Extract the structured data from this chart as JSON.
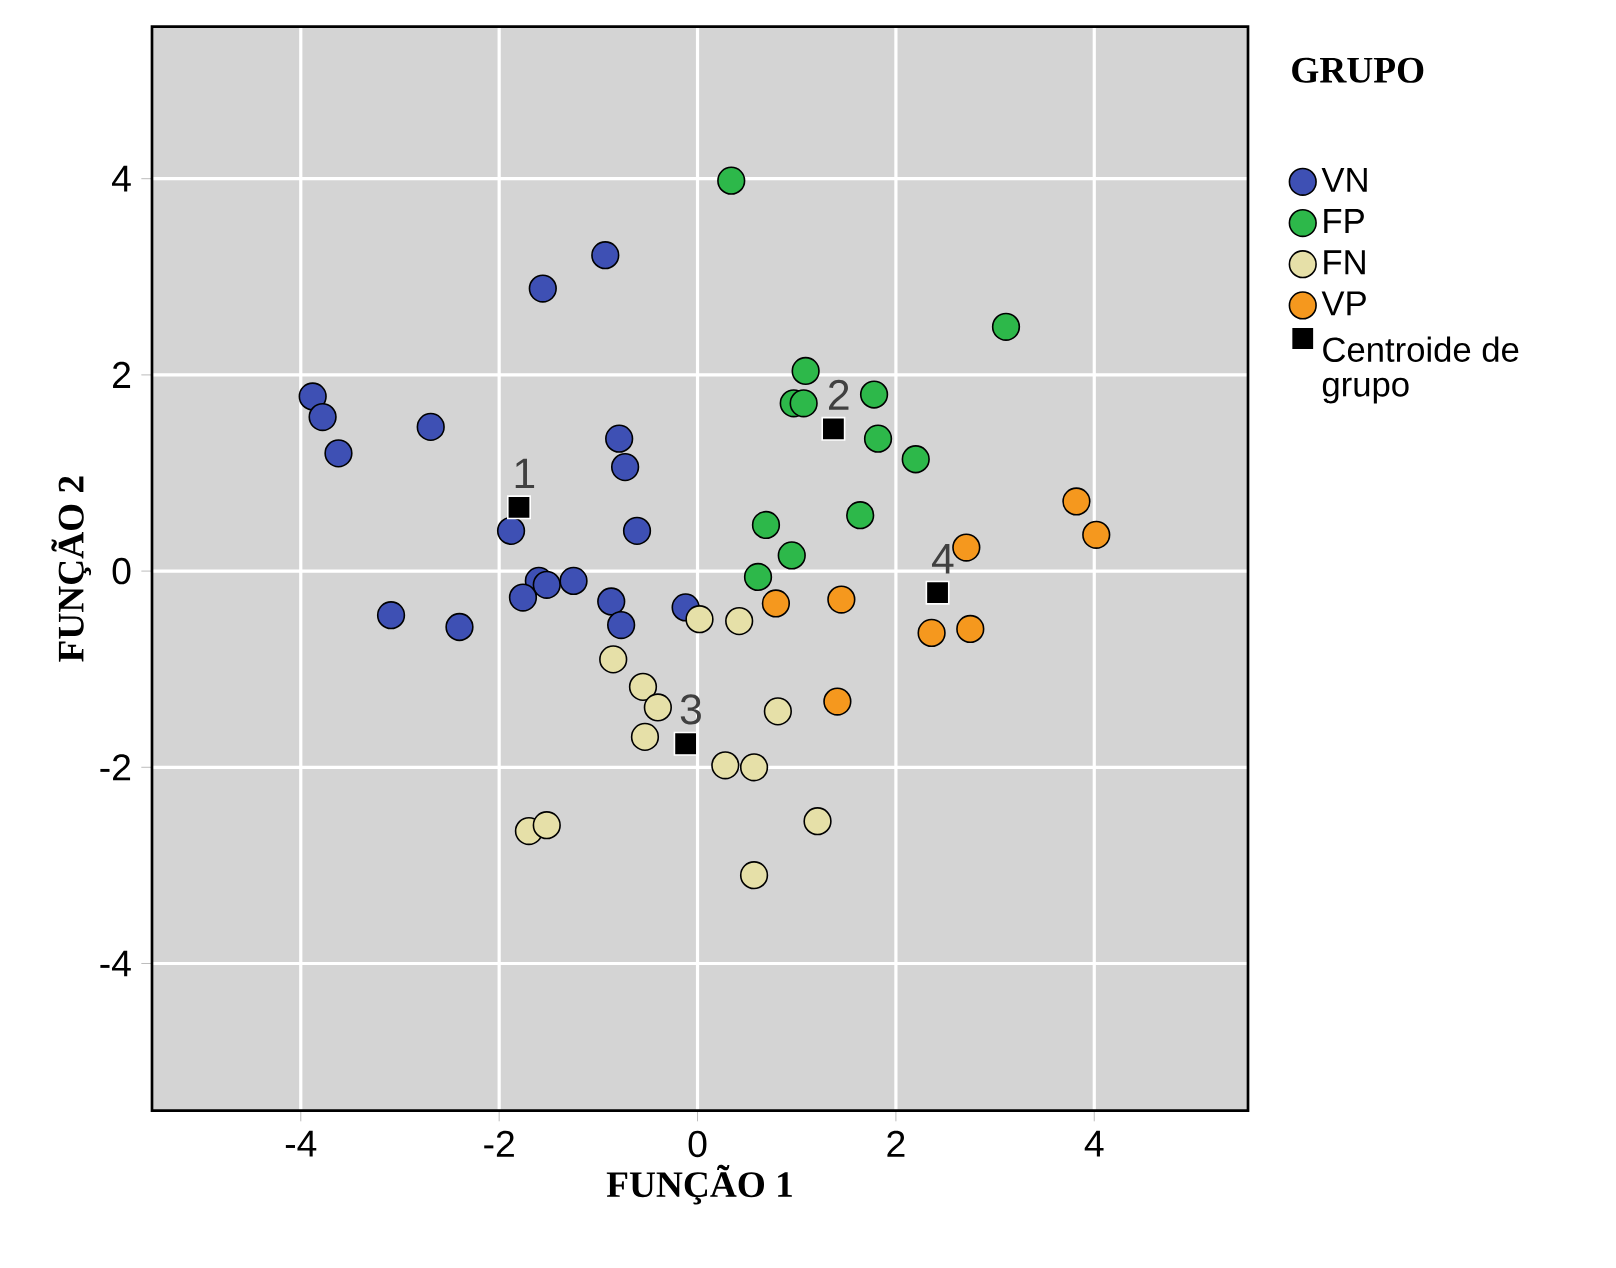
{
  "chart_data": {
    "type": "scatter",
    "xlabel": "FUNÇÃO 1",
    "ylabel": "FUNÇÃO 2",
    "legend_title": "GRUPO",
    "legend": "top right",
    "grid": true,
    "marker": "circle",
    "xlim": [
      -5.5,
      5.55
    ],
    "ylim": [
      -5.5,
      5.55
    ],
    "xticks": [
      -4,
      -2,
      0,
      2,
      4
    ],
    "yticks": [
      -4,
      -2,
      0,
      2,
      4
    ],
    "series": [
      {
        "name": "VN",
        "color": "#3e50b4",
        "x": [
          -3.88,
          -3.78,
          -3.62,
          -2.69,
          -1.56,
          -0.93,
          -0.79,
          -0.73,
          -0.61,
          -1.88,
          -3.09,
          -2.4,
          -1.6,
          -1.52,
          -1.76,
          -1.25,
          -0.87,
          -0.77,
          -0.12
        ],
        "values": [
          1.78,
          1.57,
          1.2,
          1.47,
          2.88,
          3.22,
          1.35,
          1.06,
          0.41,
          0.41,
          -0.45,
          -0.57,
          -0.1,
          -0.14,
          -0.27,
          -0.1,
          -0.31,
          -0.55,
          -0.37
        ]
      },
      {
        "name": "FP",
        "color": "#2db84a",
        "x": [
          0.34,
          3.11,
          1.09,
          0.97,
          1.07,
          1.78,
          1.82,
          2.2,
          1.64,
          0.69,
          0.95,
          0.61
        ],
        "values": [
          3.98,
          2.49,
          2.04,
          1.71,
          1.71,
          1.8,
          1.35,
          1.14,
          0.57,
          0.47,
          0.16,
          -0.06
        ]
      },
      {
        "name": "FN",
        "color": "#e6e0a8",
        "x": [
          0.02,
          0.42,
          -0.85,
          -0.55,
          -0.4,
          -0.53,
          0.28,
          0.57,
          0.81,
          1.21,
          0.57,
          -1.7,
          -1.52
        ],
        "values": [
          -0.49,
          -0.51,
          -0.9,
          -1.18,
          -1.39,
          -1.69,
          -1.98,
          -2.0,
          -1.43,
          -2.55,
          -3.1,
          -2.65,
          -2.59
        ]
      },
      {
        "name": "VP",
        "color": "#f5981e",
        "x": [
          0.79,
          1.45,
          1.41,
          2.71,
          2.36,
          2.75,
          3.82,
          4.02
        ],
        "values": [
          -0.33,
          -0.29,
          -1.33,
          0.24,
          -0.63,
          -0.59,
          0.71,
          0.37
        ]
      },
      {
        "name": "Centroide de grupo",
        "color": "#000000",
        "marker": "square",
        "x": [
          -1.8,
          1.37,
          -0.12,
          2.42
        ],
        "values": [
          0.65,
          1.45,
          -1.76,
          -0.22
        ]
      }
    ],
    "annotations": [
      {
        "text": "1",
        "x": -1.8,
        "y": 0.65
      },
      {
        "text": "2",
        "x": 1.37,
        "y": 1.45
      },
      {
        "text": "3",
        "x": -0.12,
        "y": -1.76
      },
      {
        "text": "4",
        "x": 2.42,
        "y": -0.22
      }
    ]
  }
}
